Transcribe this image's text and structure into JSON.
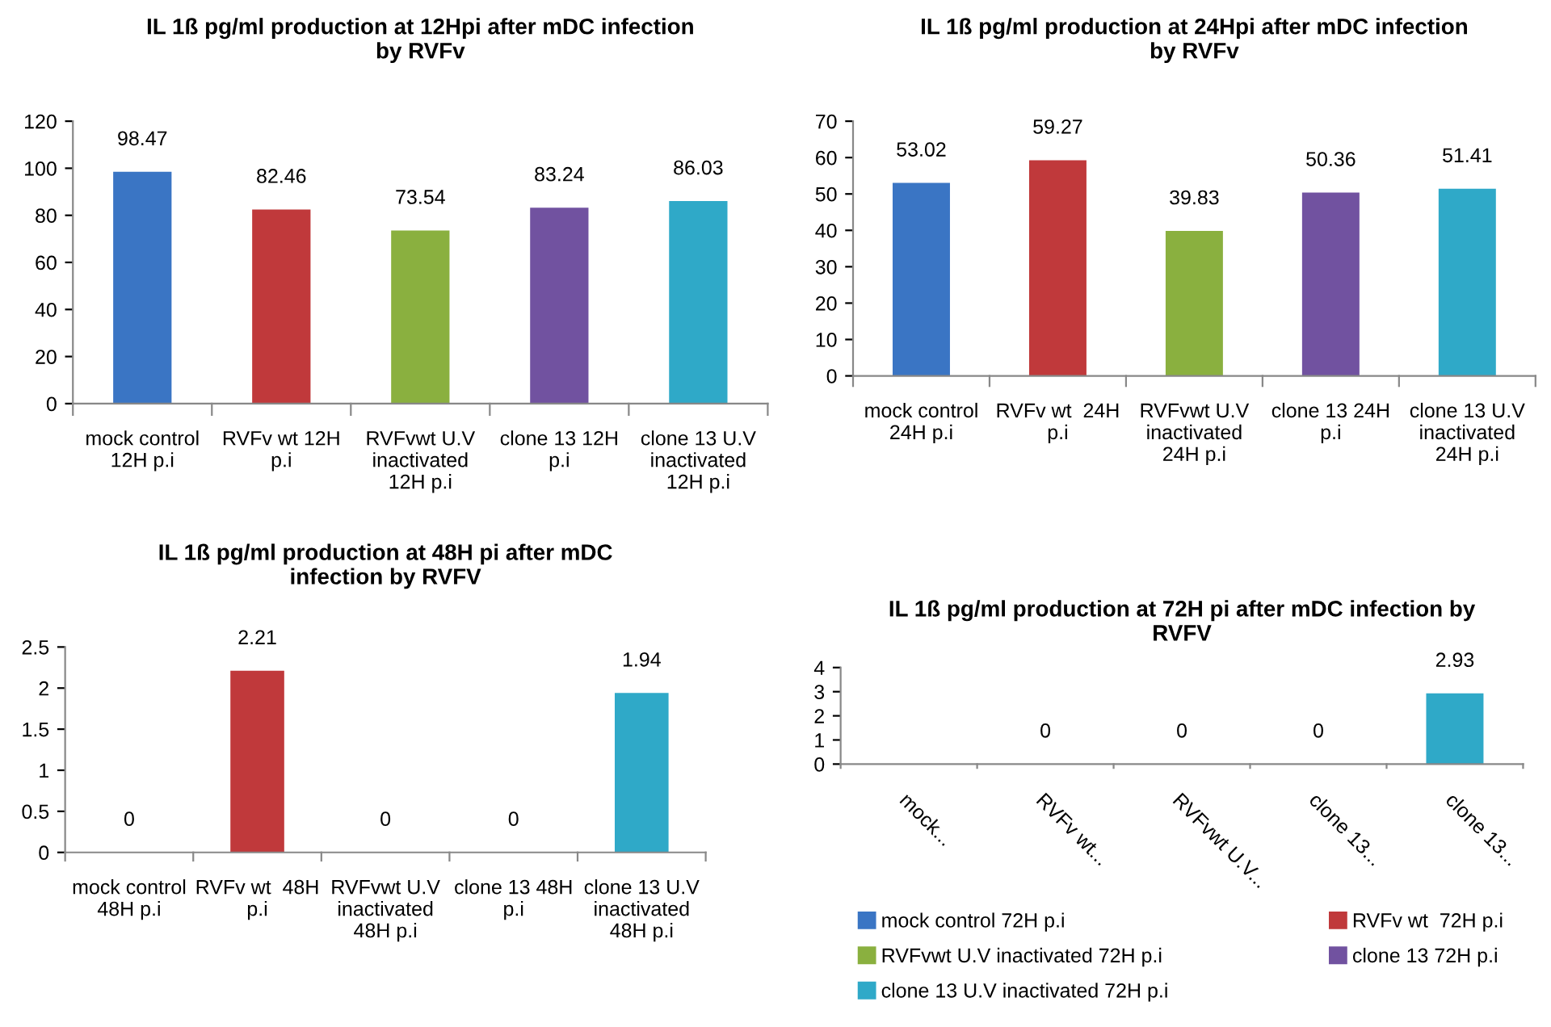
{
  "chart_data": [
    {
      "type": "bar",
      "title": "IL 1ß pg/ml production at 12Hpi after mDC infection by RVFv",
      "categories": [
        "mock control 12H p.i",
        "RVFv wt 12H p.i",
        "RVFvwt U.V inactivated 12H p.i",
        "clone 13 12H p.i",
        "clone 13 U.V inactivated 12H p.i"
      ],
      "values": [
        98.47,
        82.46,
        73.54,
        83.24,
        86.03
      ],
      "colors": [
        "#3a75c4",
        "#c0393b",
        "#8ab03f",
        "#7152a0",
        "#2fa9c8"
      ],
      "ylim": [
        0,
        120
      ],
      "yticks": [
        0,
        20,
        40,
        60,
        80,
        100,
        120
      ],
      "grid": false,
      "legend": false,
      "data_labels": true
    },
    {
      "type": "bar",
      "title": "IL 1ß pg/ml production at 24Hpi after mDC infection by RVFv",
      "categories": [
        "mock control 24H p.i",
        "RVFv wt  24H p.i",
        "RVFvwt U.V inactivated 24H p.i",
        "clone 13 24H p.i",
        "clone 13 U.V inactivated 24H p.i"
      ],
      "values": [
        53.02,
        59.27,
        39.83,
        50.36,
        51.41
      ],
      "colors": [
        "#3a75c4",
        "#c0393b",
        "#8ab03f",
        "#7152a0",
        "#2fa9c8"
      ],
      "ylim": [
        0,
        70
      ],
      "yticks": [
        0,
        10,
        20,
        30,
        40,
        50,
        60,
        70
      ],
      "grid": false,
      "legend": false,
      "data_labels": true
    },
    {
      "type": "bar",
      "title": "IL 1ß pg/ml production at 48H pi after mDC infection by RVFV",
      "categories": [
        "mock control 48H p.i",
        "RVFv wt  48H p.i",
        "RVFvwt U.V inactivated 48H p.i",
        "clone 13 48H p.i",
        "clone 13 U.V inactivated 48H p.i"
      ],
      "values": [
        0,
        2.21,
        0,
        0,
        1.94
      ],
      "colors": [
        "#3a75c4",
        "#c0393b",
        "#8ab03f",
        "#7152a0",
        "#2fa9c8"
      ],
      "ylim": [
        0,
        2.5
      ],
      "yticks": [
        0,
        0.5,
        1,
        1.5,
        2,
        2.5
      ],
      "grid": false,
      "legend": false,
      "data_labels": true
    },
    {
      "type": "bar",
      "title": "IL 1ß pg/ml production at 72H pi after mDC infection by RVFV",
      "categories": [
        "mock...",
        "RVFv wt...",
        "RVFvwt U.V...",
        "clone 13...",
        "clone 13..."
      ],
      "series": [
        {
          "name": "mock control 72H p.i",
          "color": "#3a75c4",
          "values": [
            null,
            null,
            null,
            null,
            null
          ]
        },
        {
          "name": "RVFv wt  72H p.i",
          "color": "#c0393b",
          "values": [
            null,
            0,
            null,
            null,
            null
          ]
        },
        {
          "name": "RVFvwt U.V inactivated 72H p.i",
          "color": "#8ab03f",
          "values": [
            null,
            null,
            0,
            null,
            null
          ]
        },
        {
          "name": "clone 13 72H p.i",
          "color": "#7152a0",
          "values": [
            null,
            null,
            null,
            0,
            null
          ]
        },
        {
          "name": "clone 13 U.V inactivated 72H p.i",
          "color": "#2fa9c8",
          "values": [
            null,
            null,
            null,
            null,
            2.93
          ]
        }
      ],
      "ylim": [
        0,
        4
      ],
      "yticks": [
        0,
        1,
        2,
        3,
        4
      ],
      "grid": false,
      "legend": "bottom",
      "data_labels": true
    }
  ]
}
